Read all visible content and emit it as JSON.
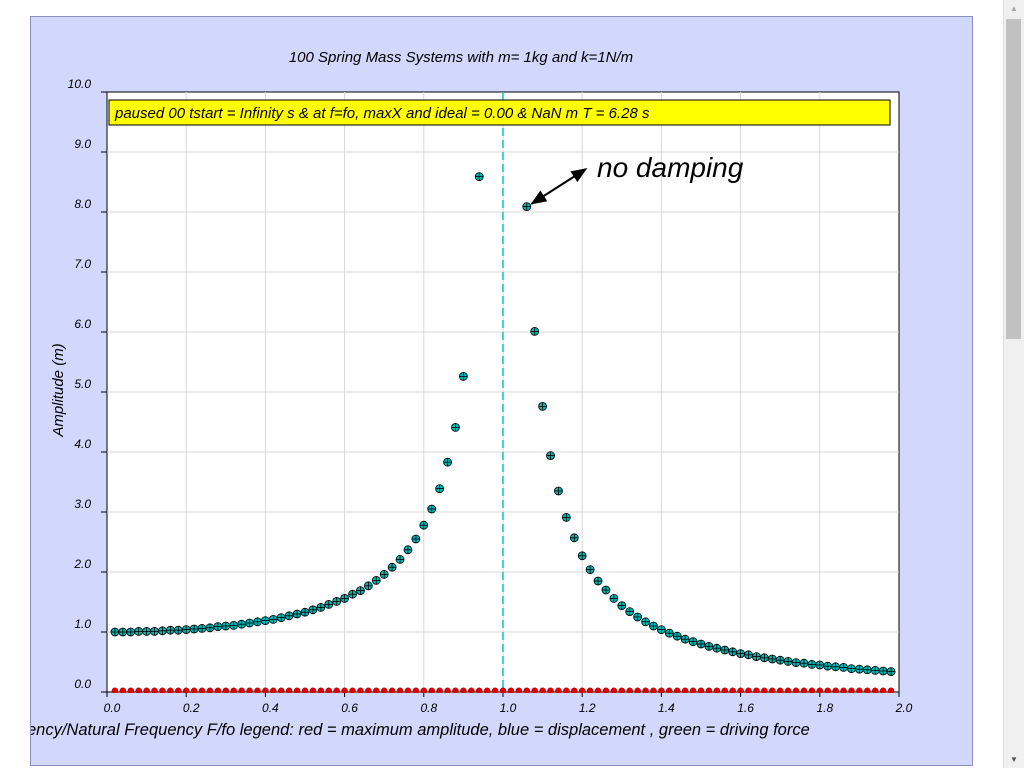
{
  "chart_data": {
    "type": "scatter",
    "title": "100 Spring Mass Systems with m= 1kg and k=1N/m",
    "status": "paused  00 tstart = Infinity s & at f=fo, maxX and ideal = 0.00 & NaN m T = 6.28 s",
    "annotation": "no damping",
    "xlabel": "ency/Natural Frequency F/fo legend: red = maximum amplitude, blue = displacement , green = driving force",
    "ylabel": "Amplitude (m)",
    "xlim": [
      0,
      2
    ],
    "ylim": [
      0,
      10
    ],
    "x_ticks": [
      "0.0",
      "0.2",
      "0.4",
      "0.6",
      "0.8",
      "1.0",
      "1.2",
      "1.4",
      "1.6",
      "1.8",
      "2.0"
    ],
    "y_ticks": [
      "0.0",
      "1.0",
      "2.0",
      "3.0",
      "4.0",
      "5.0",
      "6.0",
      "7.0",
      "8.0",
      "9.0",
      "10.0"
    ],
    "grid": true,
    "reference_line_x": 1.0,
    "annotation_point": [
      1.06,
      8.09
    ],
    "series": [
      {
        "color": "#00b4b4",
        "x": [
          0.02,
          0.04,
          0.06,
          0.08,
          0.1,
          0.12,
          0.14,
          0.16,
          0.18,
          0.2,
          0.22,
          0.24,
          0.26,
          0.28,
          0.3,
          0.32,
          0.34,
          0.36,
          0.38,
          0.4,
          0.42,
          0.44,
          0.46,
          0.48,
          0.5,
          0.52,
          0.54,
          0.56,
          0.58,
          0.6,
          0.62,
          0.64,
          0.66,
          0.68,
          0.7,
          0.72,
          0.74,
          0.76,
          0.78,
          0.8,
          0.82,
          0.84,
          0.86,
          0.88,
          0.9,
          0.94,
          1.06,
          1.08,
          1.1,
          1.12,
          1.14,
          1.16,
          1.18,
          1.2,
          1.22,
          1.24,
          1.26,
          1.28,
          1.3,
          1.32,
          1.34,
          1.36,
          1.38,
          1.4,
          1.42,
          1.44,
          1.46,
          1.48,
          1.5,
          1.52,
          1.54,
          1.56,
          1.58,
          1.6,
          1.62,
          1.64,
          1.66,
          1.68,
          1.7,
          1.72,
          1.74,
          1.76,
          1.78,
          1.8,
          1.82,
          1.84,
          1.86,
          1.88,
          1.9,
          1.92,
          1.94,
          1.96,
          1.98
        ],
        "y": [
          1.0,
          1.0,
          1.0,
          1.01,
          1.01,
          1.01,
          1.02,
          1.03,
          1.03,
          1.04,
          1.05,
          1.06,
          1.07,
          1.09,
          1.1,
          1.11,
          1.13,
          1.15,
          1.17,
          1.19,
          1.21,
          1.24,
          1.27,
          1.3,
          1.33,
          1.37,
          1.41,
          1.46,
          1.51,
          1.56,
          1.63,
          1.69,
          1.77,
          1.86,
          1.96,
          2.08,
          2.21,
          2.37,
          2.55,
          2.78,
          3.05,
          3.39,
          3.83,
          4.41,
          5.26,
          8.59,
          8.09,
          6.01,
          4.76,
          3.94,
          3.35,
          2.91,
          2.57,
          2.27,
          2.04,
          1.85,
          1.7,
          1.56,
          1.44,
          1.34,
          1.25,
          1.17,
          1.1,
          1.04,
          0.98,
          0.93,
          0.88,
          0.84,
          0.8,
          0.76,
          0.73,
          0.7,
          0.67,
          0.64,
          0.62,
          0.59,
          0.57,
          0.55,
          0.53,
          0.51,
          0.49,
          0.48,
          0.46,
          0.45,
          0.43,
          0.42,
          0.41,
          0.39,
          0.38,
          0.37,
          0.36,
          0.35,
          0.34
        ]
      },
      {
        "color": "#e00000",
        "x": [
          0.02,
          0.04,
          0.06,
          0.08,
          0.1,
          0.12,
          0.14,
          0.16,
          0.18,
          0.2,
          0.22,
          0.24,
          0.26,
          0.28,
          0.3,
          0.32,
          0.34,
          0.36,
          0.38,
          0.4,
          0.42,
          0.44,
          0.46,
          0.48,
          0.5,
          0.52,
          0.54,
          0.56,
          0.58,
          0.6,
          0.62,
          0.64,
          0.66,
          0.68,
          0.7,
          0.72,
          0.74,
          0.76,
          0.78,
          0.8,
          0.82,
          0.84,
          0.86,
          0.88,
          0.9,
          0.92,
          0.94,
          0.96,
          0.98,
          1.0,
          1.02,
          1.04,
          1.06,
          1.08,
          1.1,
          1.12,
          1.14,
          1.16,
          1.18,
          1.2,
          1.22,
          1.24,
          1.26,
          1.28,
          1.3,
          1.32,
          1.34,
          1.36,
          1.38,
          1.4,
          1.42,
          1.44,
          1.46,
          1.48,
          1.5,
          1.52,
          1.54,
          1.56,
          1.58,
          1.6,
          1.62,
          1.64,
          1.66,
          1.68,
          1.7,
          1.72,
          1.74,
          1.76,
          1.78,
          1.8,
          1.82,
          1.84,
          1.86,
          1.88,
          1.9,
          1.92,
          1.94,
          1.96,
          1.98
        ],
        "y": [
          0.02,
          0.02,
          0.02,
          0.02,
          0.02,
          0.02,
          0.02,
          0.02,
          0.02,
          0.02,
          0.02,
          0.02,
          0.02,
          0.02,
          0.02,
          0.02,
          0.02,
          0.02,
          0.02,
          0.02,
          0.02,
          0.02,
          0.02,
          0.02,
          0.02,
          0.02,
          0.02,
          0.02,
          0.02,
          0.02,
          0.02,
          0.02,
          0.02,
          0.02,
          0.02,
          0.02,
          0.02,
          0.02,
          0.02,
          0.02,
          0.02,
          0.02,
          0.02,
          0.02,
          0.02,
          0.02,
          0.02,
          0.02,
          0.02,
          0.02,
          0.02,
          0.02,
          0.02,
          0.02,
          0.02,
          0.02,
          0.02,
          0.02,
          0.02,
          0.02,
          0.02,
          0.02,
          0.02,
          0.02,
          0.02,
          0.02,
          0.02,
          0.02,
          0.02,
          0.02,
          0.02,
          0.02,
          0.02,
          0.02,
          0.02,
          0.02,
          0.02,
          0.02,
          0.02,
          0.02,
          0.02,
          0.02,
          0.02,
          0.02,
          0.02,
          0.02,
          0.02,
          0.02,
          0.02,
          0.02,
          0.02,
          0.02,
          0.02,
          0.02,
          0.02,
          0.02,
          0.02,
          0.02,
          0.02
        ]
      }
    ]
  },
  "colors": {
    "panel_background": "#d2d7fc",
    "plot_background": "#ffffff",
    "status_background": "#ffff00",
    "grid": "#d8d8d8",
    "reference_line": "#00c8c8"
  },
  "icons": {
    "scroll_up": "▲",
    "scroll_down": "▼"
  }
}
